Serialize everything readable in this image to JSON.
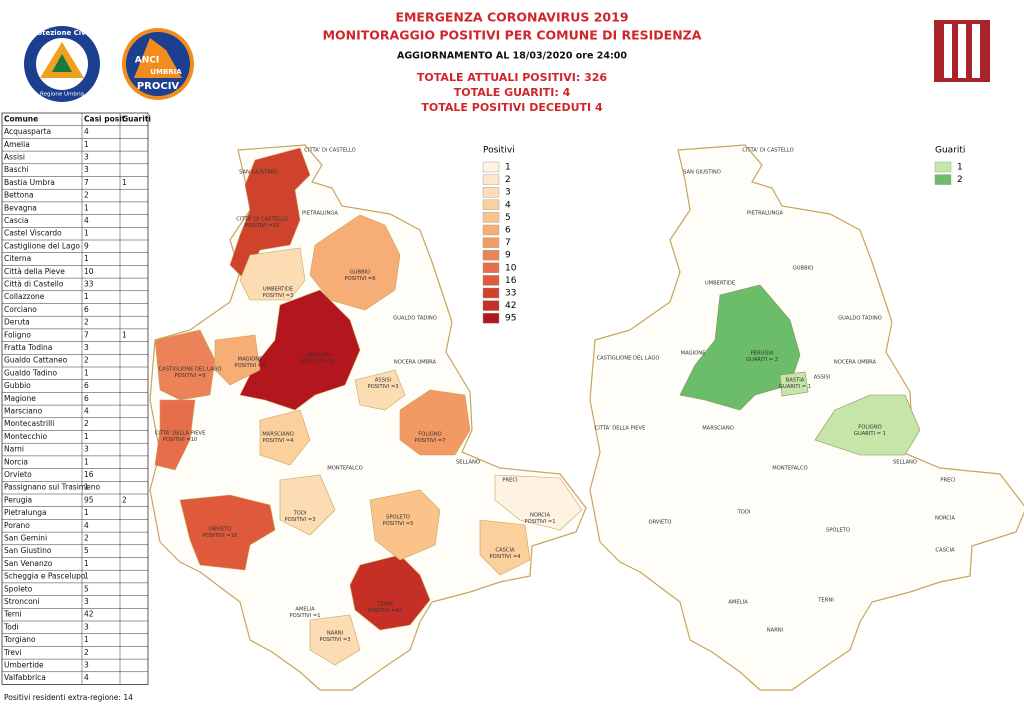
{
  "header": {
    "title": "EMERGENZA CORONAVIRUS 2019",
    "subtitle": "MONITORAGGIO POSITIVI PER COMUNE DI RESIDENZA",
    "update": "AGGIORNAMENTO AL 18/03/2020 ore 24:00",
    "total_positives": "TOTALE ATTUALI POSITIVI: 326",
    "total_recovered": "TOTALE GUARITI:  4",
    "total_deceased": "TOTALE POSITIVI DECEDUTI 4"
  },
  "logos": {
    "civil_protection": "Protezione Civile",
    "civil_protection_region": "Regione Umbria",
    "anci": "ANCI",
    "anci_region": "UMBRIA",
    "anci_prociv": "PROCIV"
  },
  "table": {
    "columns": [
      "Comune",
      "Casi posit",
      "Guariti"
    ],
    "rows": [
      [
        "Acquasparta",
        4,
        null
      ],
      [
        "Amelia",
        1,
        null
      ],
      [
        "Assisi",
        3,
        null
      ],
      [
        "Baschi",
        3,
        null
      ],
      [
        "Bastia Umbra",
        7,
        1
      ],
      [
        "Bettona",
        2,
        null
      ],
      [
        "Bevagna",
        1,
        null
      ],
      [
        "Cascia",
        4,
        null
      ],
      [
        "Castel Viscardo",
        1,
        null
      ],
      [
        "Castiglione del Lago",
        9,
        null
      ],
      [
        "Citerna",
        1,
        null
      ],
      [
        "Città  della Pieve",
        10,
        null
      ],
      [
        "Città  di Castello",
        33,
        null
      ],
      [
        "Collazzone",
        1,
        null
      ],
      [
        "Corciano",
        6,
        null
      ],
      [
        "Deruta",
        2,
        null
      ],
      [
        "Foligno",
        7,
        1
      ],
      [
        "Fratta Todina",
        3,
        null
      ],
      [
        "Gualdo Cattaneo",
        2,
        null
      ],
      [
        "Gualdo Tadino",
        1,
        null
      ],
      [
        "Gubbio",
        6,
        null
      ],
      [
        "Magione",
        6,
        null
      ],
      [
        "Marsciano",
        4,
        null
      ],
      [
        "Montecastrilli",
        2,
        null
      ],
      [
        "Montecchio",
        1,
        null
      ],
      [
        "Narni",
        3,
        null
      ],
      [
        "Norcia",
        1,
        null
      ],
      [
        "Orvieto",
        16,
        null
      ],
      [
        "Passignano sul Trasimeno",
        1,
        null
      ],
      [
        "Perugia",
        95,
        2
      ],
      [
        "Pietralunga",
        1,
        null
      ],
      [
        "Porano",
        4,
        null
      ],
      [
        "San Gemini",
        2,
        null
      ],
      [
        "San Giustino",
        5,
        null
      ],
      [
        "San Venanzo",
        1,
        null
      ],
      [
        "Scheggia e Pascelupo",
        1,
        null
      ],
      [
        "Spoleto",
        5,
        null
      ],
      [
        "Stronconi",
        3,
        null
      ],
      [
        "Terni",
        42,
        null
      ],
      [
        "Todi",
        3,
        null
      ],
      [
        "Torgiano",
        1,
        null
      ],
      [
        "Trevi",
        2,
        null
      ],
      [
        "Umbertide",
        3,
        null
      ],
      [
        "Valfabbrica",
        4,
        null
      ]
    ],
    "footer": "Positivi residenti extra-regione: 14"
  },
  "legend_positives": {
    "title": "Positivi",
    "values": [
      1,
      2,
      3,
      4,
      5,
      6,
      7,
      9,
      10,
      16,
      33,
      42,
      95
    ],
    "colors": [
      "#fef3e2",
      "#fde8cc",
      "#fcdcb3",
      "#fbd09c",
      "#f9c38a",
      "#f6ae76",
      "#f29a63",
      "#ec8358",
      "#e66e4a",
      "#de5a3a",
      "#cf432d",
      "#c62f25",
      "#b3161d"
    ]
  },
  "legend_recovered": {
    "title": "Guariti",
    "values": [
      1,
      2
    ],
    "colors": [
      "#c6e5a8",
      "#6cbd6a"
    ]
  },
  "map_left": {
    "labels": [
      [
        "CITTA' DI CASTELLO"
      ],
      [
        "SAN GIUSTINO"
      ],
      [
        "CITTA' DI CASTELLO",
        "POSITIVI =33"
      ],
      [
        "PIETRALUNGA"
      ],
      [
        "GUBBIO",
        "POSITIVI =6"
      ],
      [
        "UMBERTIDE",
        "POSITIVI =3"
      ],
      [
        "PERUGIA",
        "POSITIVI =95"
      ],
      [
        "CASTIGLIONE DEL LAGO",
        "POSITIVI =9"
      ],
      [
        "MAGIONE",
        "POSITIVI =6"
      ],
      [
        "CITTA' DELLA PIEVE",
        "POSITIVI =10"
      ],
      [
        "MARSCIANO",
        "POSITIVI =4"
      ],
      [
        "FOLIGNO",
        "POSITIVI =7"
      ],
      [
        "ASSISI",
        "POSITIVI =3"
      ],
      [
        "ORVIETO",
        "POSITIVI =16"
      ],
      [
        "TODI",
        "POSITIVI =3"
      ],
      [
        "SPOLETO",
        "POSITIVI =5"
      ],
      [
        "TERNI",
        "POSITIVI =42"
      ],
      [
        "NARNI",
        "POSITIVI =3"
      ],
      [
        "AMELIA",
        "POSITIVI =1"
      ],
      [
        "CASCIA",
        "POSITIVI =4"
      ],
      [
        "NORCIA",
        "POSITIVI =1"
      ],
      [
        "NOCERA UMBRA"
      ],
      [
        "GUALDO TADINO"
      ],
      [
        "SELLANO"
      ],
      [
        "PRECI"
      ],
      [
        "MONTEFALCO"
      ]
    ]
  },
  "map_right": {
    "labels": [
      [
        "CITTA' DI CASTELLO"
      ],
      [
        "SAN GIUSTINO"
      ],
      [
        "PIETRALUNGA"
      ],
      [
        "GUBBIO"
      ],
      [
        "UMBERTIDE"
      ],
      [
        "PERUGIA",
        "GUARITI = 2"
      ],
      [
        "BASTIA",
        "GUARITI = 1"
      ],
      [
        "FOLIGNO",
        "GUARITI = 1"
      ],
      [
        "ASSISI"
      ],
      [
        "CASTIGLIONE DEL LAGO"
      ],
      [
        "MAGIONE"
      ],
      [
        "CITTA' DELLA PIEVE"
      ],
      [
        "MARSCIANO"
      ],
      [
        "ORVIETO"
      ],
      [
        "TODI"
      ],
      [
        "SPOLETO"
      ],
      [
        "TERNI"
      ],
      [
        "NARNI"
      ],
      [
        "AMELIA"
      ],
      [
        "CASCIA"
      ],
      [
        "NORCIA"
      ],
      [
        "NOCERA UMBRA"
      ],
      [
        "GUALDO TADINO"
      ],
      [
        "SELLANO"
      ],
      [
        "PRECI"
      ],
      [
        "MONTEFALCO"
      ]
    ]
  }
}
